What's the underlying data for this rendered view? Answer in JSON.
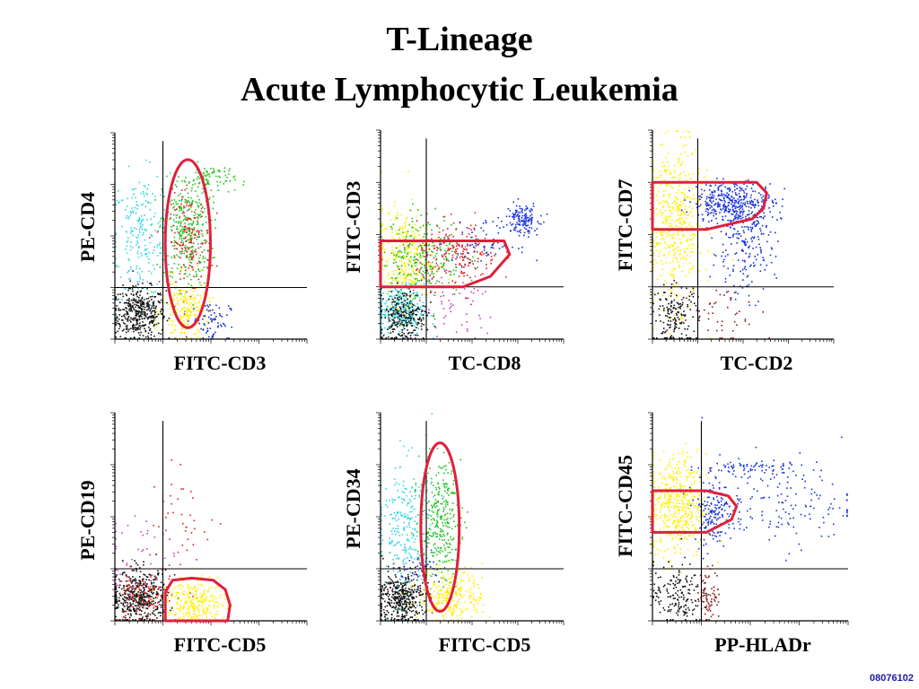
{
  "title_line1": "T-Lineage",
  "title_line2": "Acute Lymphocytic Leukemia",
  "slide_code": "08076102",
  "colors": {
    "black": "#111111",
    "cyan": "#33d6e6",
    "green": "#22c422",
    "red": "#e02020",
    "yellow": "#ffee00",
    "blue": "#1730e0",
    "magenta": "#c040c0",
    "darkred": "#8b1a1a",
    "gate": "#e0203a"
  },
  "chart_data": [
    {
      "type": "scatter",
      "xlabel": "FITC-CD3",
      "ylabel": "PE-CD4",
      "xlim": [
        0,
        4
      ],
      "ylim": [
        0,
        4
      ],
      "quadrant": {
        "x": 1,
        "y": 1
      },
      "populations": [
        {
          "color": "black",
          "cx": 0.5,
          "cy": 0.5,
          "sx": 0.28,
          "sy": 0.25,
          "n": 420
        },
        {
          "color": "cyan",
          "cx": 0.55,
          "cy": 2.0,
          "sx": 0.3,
          "sy": 0.6,
          "n": 220
        },
        {
          "color": "green",
          "cx": 1.5,
          "cy": 2.1,
          "sx": 0.25,
          "sy": 0.55,
          "n": 330
        },
        {
          "color": "red",
          "cx": 1.55,
          "cy": 1.9,
          "sx": 0.22,
          "sy": 0.45,
          "n": 160
        },
        {
          "color": "green",
          "cx": 2.0,
          "cy": 3.1,
          "sx": 0.25,
          "sy": 0.15,
          "n": 80
        },
        {
          "color": "yellow",
          "cx": 1.5,
          "cy": 0.55,
          "sx": 0.25,
          "sy": 0.3,
          "n": 220
        },
        {
          "color": "blue",
          "cx": 2.0,
          "cy": 0.35,
          "sx": 0.2,
          "sy": 0.2,
          "n": 70
        }
      ],
      "gate": {
        "shape": "ellipse",
        "points": [
          [
            1.52,
            1.85
          ],
          [
            0.47,
            1.63
          ]
        ]
      }
    },
    {
      "type": "scatter",
      "xlabel": "TC-CD8",
      "ylabel": "FITC-CD3",
      "xlim": [
        0,
        4
      ],
      "ylim": [
        0,
        4
      ],
      "quadrant": {
        "x": 1,
        "y": 1
      },
      "populations": [
        {
          "color": "cyan",
          "cx": 0.45,
          "cy": 0.55,
          "sx": 0.25,
          "sy": 0.25,
          "n": 300
        },
        {
          "color": "black",
          "cx": 0.5,
          "cy": 0.45,
          "sx": 0.25,
          "sy": 0.25,
          "n": 260
        },
        {
          "color": "yellow",
          "cx": 0.5,
          "cy": 1.6,
          "sx": 0.3,
          "sy": 0.45,
          "n": 320
        },
        {
          "color": "green",
          "cx": 0.9,
          "cy": 1.6,
          "sx": 0.45,
          "sy": 0.4,
          "n": 260
        },
        {
          "color": "red",
          "cx": 1.7,
          "cy": 1.6,
          "sx": 0.45,
          "sy": 0.3,
          "n": 200
        },
        {
          "color": "magenta",
          "cx": 1.6,
          "cy": 0.6,
          "sx": 0.5,
          "sy": 0.4,
          "n": 60
        },
        {
          "color": "blue",
          "cx": 3.1,
          "cy": 2.3,
          "sx": 0.18,
          "sy": 0.15,
          "n": 140
        },
        {
          "color": "blue",
          "cx": 2.3,
          "cy": 1.85,
          "sx": 0.35,
          "sy": 0.2,
          "n": 70
        }
      ],
      "gate": {
        "shape": "polygon",
        "points": [
          [
            0,
            1.88
          ],
          [
            2.7,
            1.88
          ],
          [
            2.82,
            1.62
          ],
          [
            2.4,
            1.2
          ],
          [
            1.8,
            1.0
          ],
          [
            0,
            1.0
          ]
        ]
      }
    },
    {
      "type": "scatter",
      "xlabel": "TC-CD2",
      "ylabel": "FITC-CD7",
      "xlim": [
        0,
        4
      ],
      "ylim": [
        0,
        4
      ],
      "quadrant": {
        "x": 1,
        "y": 1
      },
      "populations": [
        {
          "color": "yellow",
          "cx": 0.5,
          "cy": 2.2,
          "sx": 0.3,
          "sy": 0.75,
          "n": 480
        },
        {
          "color": "blue",
          "cx": 1.8,
          "cy": 2.6,
          "sx": 0.45,
          "sy": 0.2,
          "n": 400
        },
        {
          "color": "blue",
          "cx": 2.0,
          "cy": 1.7,
          "sx": 0.35,
          "sy": 0.45,
          "n": 180
        },
        {
          "color": "black",
          "cx": 0.5,
          "cy": 0.45,
          "sx": 0.25,
          "sy": 0.3,
          "n": 160
        },
        {
          "color": "darkred",
          "cx": 1.6,
          "cy": 0.5,
          "sx": 0.5,
          "sy": 0.3,
          "n": 50
        }
      ],
      "gate": {
        "shape": "polygon",
        "points": [
          [
            0,
            3.0
          ],
          [
            2.3,
            3.0
          ],
          [
            2.52,
            2.8
          ],
          [
            2.45,
            2.5
          ],
          [
            2.2,
            2.3
          ],
          [
            1.2,
            2.1
          ],
          [
            0,
            2.1
          ]
        ]
      }
    },
    {
      "type": "scatter",
      "xlabel": "FITC-CD5",
      "ylabel": "PE-CD19",
      "xlim": [
        0,
        4
      ],
      "ylim": [
        0,
        4
      ],
      "quadrant": {
        "x": 1,
        "y": 1
      },
      "populations": [
        {
          "color": "black",
          "cx": 0.5,
          "cy": 0.45,
          "sx": 0.3,
          "sy": 0.25,
          "n": 460
        },
        {
          "color": "red",
          "cx": 0.55,
          "cy": 0.45,
          "sx": 0.3,
          "sy": 0.25,
          "n": 120
        },
        {
          "color": "yellow",
          "cx": 1.7,
          "cy": 0.35,
          "sx": 0.3,
          "sy": 0.2,
          "n": 260
        },
        {
          "color": "red",
          "cx": 1.4,
          "cy": 1.8,
          "sx": 0.45,
          "sy": 0.5,
          "n": 45
        },
        {
          "color": "magenta",
          "cx": 0.4,
          "cy": 1.3,
          "sx": 0.4,
          "sy": 0.45,
          "n": 40
        }
      ],
      "gate": {
        "shape": "polygon",
        "points": [
          [
            1.05,
            0.0
          ],
          [
            2.35,
            0.0
          ],
          [
            2.4,
            0.3
          ],
          [
            2.3,
            0.6
          ],
          [
            2.05,
            0.78
          ],
          [
            1.6,
            0.82
          ],
          [
            1.2,
            0.78
          ],
          [
            1.05,
            0.55
          ]
        ]
      }
    },
    {
      "type": "scatter",
      "xlabel": "FITC-CD5",
      "ylabel": "PE-CD34",
      "xlim": [
        0,
        4
      ],
      "ylim": [
        0,
        4
      ],
      "quadrant": {
        "x": 1,
        "y": 1
      },
      "populations": [
        {
          "color": "black",
          "cx": 0.45,
          "cy": 0.45,
          "sx": 0.25,
          "sy": 0.25,
          "n": 420
        },
        {
          "color": "cyan",
          "cx": 0.55,
          "cy": 1.8,
          "sx": 0.3,
          "sy": 0.65,
          "n": 260
        },
        {
          "color": "green",
          "cx": 1.3,
          "cy": 1.9,
          "sx": 0.22,
          "sy": 0.55,
          "n": 300
        },
        {
          "color": "yellow",
          "cx": 1.55,
          "cy": 0.5,
          "sx": 0.35,
          "sy": 0.25,
          "n": 260
        },
        {
          "color": "blue",
          "cx": 0.9,
          "cy": 1.0,
          "sx": 0.25,
          "sy": 0.15,
          "n": 40
        }
      ],
      "gate": {
        "shape": "ellipse",
        "points": [
          [
            1.3,
            1.8
          ],
          [
            0.42,
            1.62
          ]
        ]
      }
    },
    {
      "type": "scatter",
      "xlabel": "PP-HLADr",
      "ylabel": "FITC-CD45",
      "xlim": [
        0,
        4
      ],
      "ylim": [
        0,
        4
      ],
      "quadrant": {
        "x": 1,
        "y": 1
      },
      "populations": [
        {
          "color": "yellow",
          "cx": 0.5,
          "cy": 2.2,
          "sx": 0.3,
          "sy": 0.5,
          "n": 480
        },
        {
          "color": "blue",
          "cx": 1.25,
          "cy": 2.1,
          "sx": 0.2,
          "sy": 0.3,
          "n": 160
        },
        {
          "color": "blue",
          "cx": 2.6,
          "cy": 2.3,
          "sx": 0.8,
          "sy": 0.45,
          "n": 170
        },
        {
          "color": "blue",
          "cx": 1.8,
          "cy": 2.95,
          "sx": 0.5,
          "sy": 0.06,
          "n": 60
        },
        {
          "color": "black",
          "cx": 0.5,
          "cy": 0.5,
          "sx": 0.25,
          "sy": 0.3,
          "n": 160
        },
        {
          "color": "darkred",
          "cx": 1.15,
          "cy": 0.5,
          "sx": 0.12,
          "sy": 0.25,
          "n": 80
        }
      ],
      "gate": {
        "shape": "polygon",
        "points": [
          [
            0,
            2.5
          ],
          [
            1.1,
            2.5
          ],
          [
            1.55,
            2.4
          ],
          [
            1.72,
            2.2
          ],
          [
            1.62,
            1.95
          ],
          [
            1.1,
            1.7
          ],
          [
            0,
            1.7
          ]
        ]
      }
    }
  ]
}
